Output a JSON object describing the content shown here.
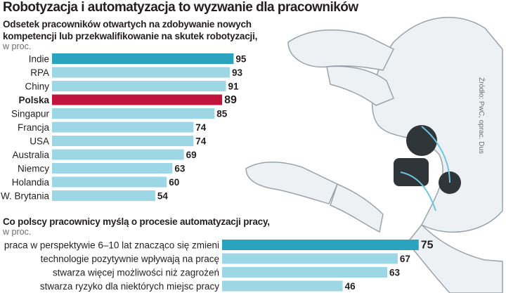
{
  "title": "Robotyzacja i automatyzacja to wyzwanie dla pracowników",
  "source": "Źródło: PwC, oprac. Dus",
  "colors": {
    "bar": "#9dd7e6",
    "highlight_teal": "#2aa3bf",
    "highlight_red": "#c0143c",
    "text": "#231f20",
    "muted": "#6d6e71"
  },
  "chart_data": [
    {
      "type": "bar",
      "orientation": "horizontal",
      "subtitle_line1": "Odsetek pracowników otwartych na zdobywanie nowych",
      "subtitle_line2": "kompetencji lub przekwalifikowanie na skutek robotyzacji,",
      "unit": "w proc.",
      "categories": [
        "Indie",
        "RPA",
        "Chiny",
        "Polska",
        "Singapur",
        "Francja",
        "USA",
        "Australia",
        "Niemcy",
        "Holandia",
        "W. Brytania"
      ],
      "values": [
        95,
        93,
        91,
        89,
        85,
        74,
        74,
        69,
        63,
        60,
        54
      ],
      "highlight": {
        "Indie": "teal",
        "Polska": "red"
      }
    },
    {
      "type": "bar",
      "orientation": "horizontal",
      "subtitle_line1": "Co polscy pracownicy myślą o procesie automatyzacji pracy,",
      "unit": "w proc.",
      "categories": [
        "praca w perspektywie 6–10 lat znacząco się zmieni",
        "technologie pozytywnie wpływają na pracę",
        "stwarza więcej możliwości niż zagrożeń",
        "stwarza ryzyko dla niektórych miejsc pracy"
      ],
      "values": [
        75,
        67,
        63,
        46
      ],
      "highlight": {
        "praca w perspektywie 6–10 lat znacząco się zmieni": "teal"
      }
    }
  ]
}
